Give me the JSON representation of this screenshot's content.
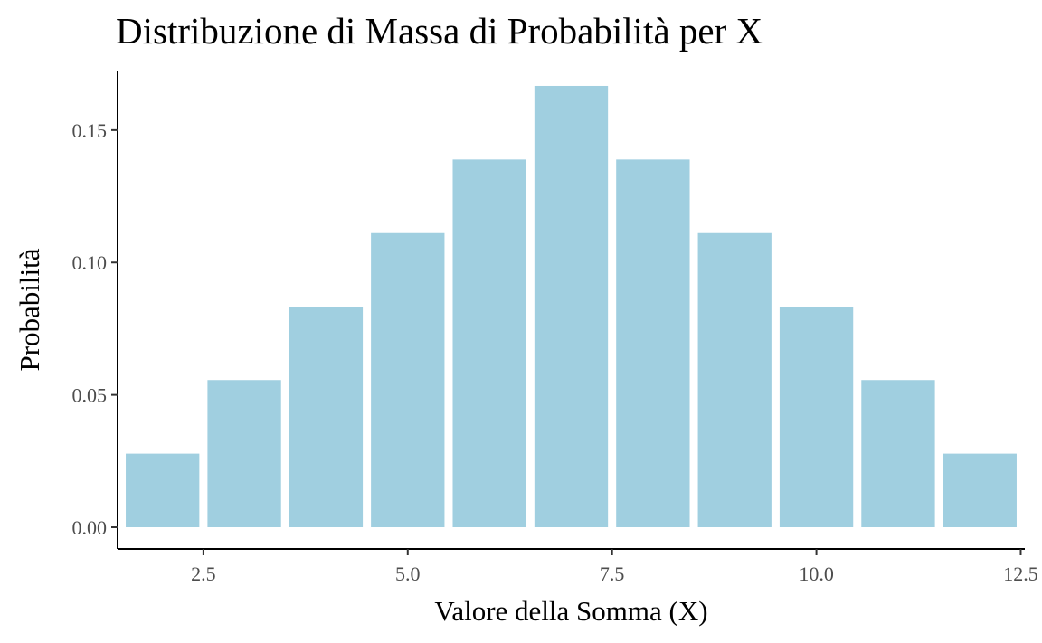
{
  "chart_data": {
    "type": "bar",
    "title": "Distribuzione di Massa di Probabilità per X",
    "xlabel": "Valore della Somma (X)",
    "ylabel": "Probabilità",
    "x": [
      2,
      3,
      4,
      5,
      6,
      7,
      8,
      9,
      10,
      11,
      12
    ],
    "values": [
      0.0278,
      0.0556,
      0.0833,
      0.1111,
      0.1389,
      0.1667,
      0.1389,
      0.1111,
      0.0833,
      0.0556,
      0.0278
    ],
    "xlim": [
      1.45,
      12.55
    ],
    "ylim": [
      0,
      0.1725
    ],
    "xticks": [
      2.5,
      5.0,
      7.5,
      10.0,
      12.5
    ],
    "xtick_labels": [
      "2.5",
      "5.0",
      "7.5",
      "10.0",
      "12.5"
    ],
    "yticks": [
      0.0,
      0.05,
      0.1,
      0.15
    ],
    "ytick_labels": [
      "0.00",
      "0.05",
      "0.10",
      "0.15"
    ],
    "bar_color": "#a0cfe0",
    "grid": false,
    "legend": "none"
  }
}
